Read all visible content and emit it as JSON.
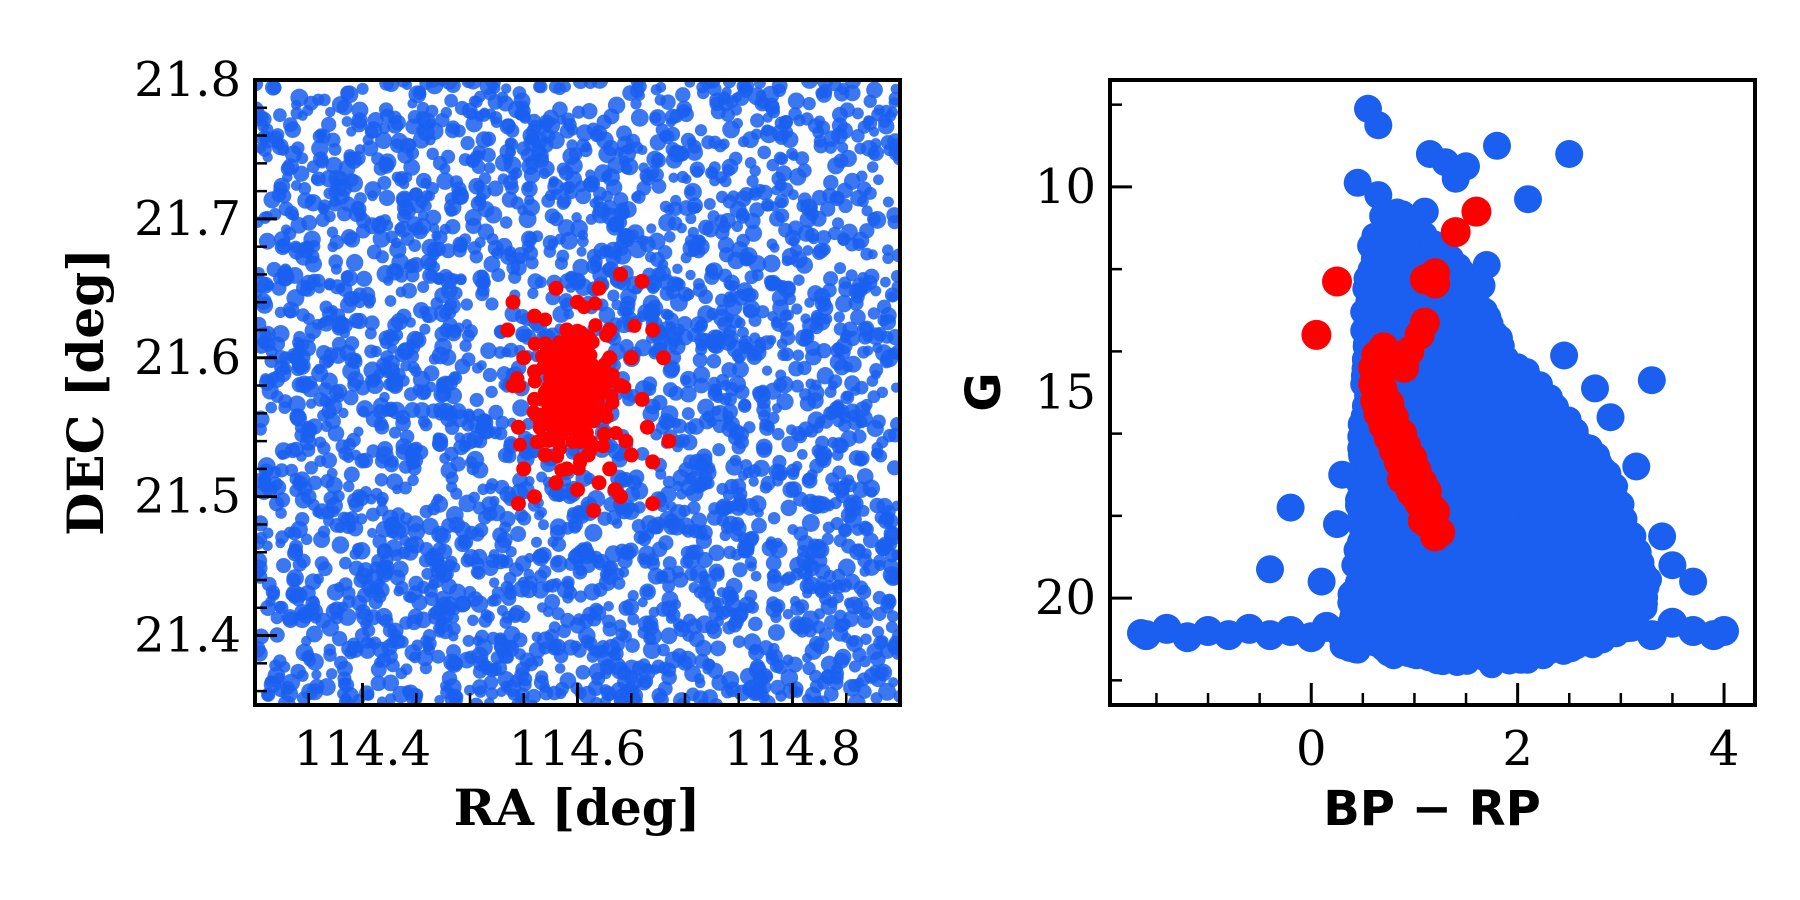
{
  "colors": {
    "field": "#1a5ff0",
    "cluster": "#ff0000",
    "axes": "#000000"
  },
  "chart_data": [
    {
      "type": "scatter",
      "xlabel": "RA [deg]",
      "ylabel": "DEC [deg]",
      "xlim": [
        114.3,
        114.9
      ],
      "ylim": [
        21.35,
        21.8
      ],
      "xticks": [
        114.4,
        114.6,
        114.8
      ],
      "xtick_labels": [
        "114.4",
        "114.6",
        "114.8"
      ],
      "yticks": [
        21.4,
        21.5,
        21.6,
        21.7,
        21.8
      ],
      "ytick_labels": [
        "21.4",
        "21.5",
        "21.6",
        "21.7",
        "21.8"
      ],
      "grid": false,
      "series": [
        {
          "role": "field",
          "color": "#1a5ff0",
          "distribution": "uniform",
          "count": 3000,
          "x_range": [
            114.3,
            114.9
          ],
          "y_range": [
            21.35,
            21.8
          ]
        },
        {
          "role": "cluster",
          "color": "#ff0000",
          "distribution": "concentrated",
          "center": [
            114.595,
            21.575
          ],
          "points": [
            [
              114.54,
              21.64
            ],
            [
              114.56,
              21.63
            ],
            [
              114.58,
              21.65
            ],
            [
              114.6,
              21.64
            ],
            [
              114.62,
              21.65
            ],
            [
              114.64,
              21.66
            ],
            [
              114.66,
              21.655
            ],
            [
              114.535,
              21.62
            ],
            [
              114.55,
              21.6
            ],
            [
              114.57,
              21.61
            ],
            [
              114.59,
              21.62
            ],
            [
              114.61,
              21.615
            ],
            [
              114.63,
              21.62
            ],
            [
              114.65,
              21.6
            ],
            [
              114.67,
              21.62
            ],
            [
              114.68,
              21.6
            ],
            [
              114.54,
              21.58
            ],
            [
              114.56,
              21.57
            ],
            [
              114.58,
              21.59
            ],
            [
              114.6,
              21.58
            ],
            [
              114.62,
              21.59
            ],
            [
              114.64,
              21.58
            ],
            [
              114.66,
              21.57
            ],
            [
              114.545,
              21.55
            ],
            [
              114.565,
              21.54
            ],
            [
              114.585,
              21.56
            ],
            [
              114.605,
              21.55
            ],
            [
              114.625,
              21.56
            ],
            [
              114.645,
              21.54
            ],
            [
              114.665,
              21.55
            ],
            [
              114.685,
              21.54
            ],
            [
              114.55,
              21.52
            ],
            [
              114.57,
              21.53
            ],
            [
              114.59,
              21.52
            ],
            [
              114.61,
              21.53
            ],
            [
              114.63,
              21.52
            ],
            [
              114.65,
              21.53
            ],
            [
              114.67,
              21.525
            ],
            [
              114.56,
              21.5
            ],
            [
              114.58,
              21.51
            ],
            [
              114.6,
              21.505
            ],
            [
              114.62,
              21.51
            ],
            [
              114.64,
              21.5
            ],
            [
              114.545,
              21.495
            ],
            [
              114.615,
              21.49
            ],
            [
              114.635,
              21.505
            ],
            [
              114.67,
              21.495
            ],
            [
              114.59,
              21.6
            ],
            [
              114.595,
              21.57
            ],
            [
              114.6,
              21.59
            ],
            [
              114.585,
              21.58
            ],
            [
              114.605,
              21.575
            ],
            [
              114.59,
              21.555
            ],
            [
              114.61,
              21.565
            ],
            [
              114.58,
              21.565
            ],
            [
              114.6,
              21.56
            ],
            [
              114.595,
              21.585
            ],
            [
              114.575,
              21.585
            ],
            [
              114.615,
              21.585
            ],
            [
              114.605,
              21.595
            ],
            [
              114.585,
              21.545
            ],
            [
              114.62,
              21.575
            ],
            [
              114.57,
              21.575
            ],
            [
              114.6,
              21.545
            ],
            [
              114.59,
              21.61
            ],
            [
              114.63,
              21.6
            ],
            [
              114.56,
              21.59
            ],
            [
              114.575,
              21.6
            ],
            [
              114.625,
              21.545
            ]
          ]
        }
      ]
    },
    {
      "type": "scatter",
      "xlabel": "BP − RP",
      "ylabel": "G",
      "xlim": [
        -1.95,
        4.3
      ],
      "ylim": [
        22.6,
        7.4
      ],
      "y_inverted": true,
      "xticks": [
        0,
        2,
        4
      ],
      "xtick_labels": [
        "0",
        "2",
        "4"
      ],
      "yticks": [
        10,
        15,
        20
      ],
      "ytick_labels": [
        "10",
        "15",
        "20"
      ],
      "grid": false,
      "series": [
        {
          "role": "field",
          "color": "#1a5ff0",
          "distribution": "dense-envelope",
          "envelope": [
            [
              0.6,
              11.0
            ],
            [
              0.75,
              10.4
            ],
            [
              1.0,
              10.8
            ],
            [
              1.15,
              11.2
            ],
            [
              1.4,
              11.8
            ],
            [
              1.6,
              12.6
            ],
            [
              1.9,
              14.0
            ],
            [
              2.3,
              15.0
            ],
            [
              2.6,
              15.9
            ],
            [
              2.9,
              17.0
            ],
            [
              3.2,
              18.5
            ],
            [
              3.3,
              19.6
            ],
            [
              3.2,
              20.6
            ],
            [
              2.6,
              21.3
            ],
            [
              1.9,
              21.7
            ],
            [
              1.3,
              21.6
            ],
            [
              0.6,
              21.4
            ],
            [
              0.3,
              21.2
            ],
            [
              0.35,
              20.2
            ],
            [
              0.45,
              18.5
            ],
            [
              0.45,
              16.5
            ],
            [
              0.5,
              14.5
            ],
            [
              0.5,
              12.6
            ],
            [
              0.55,
              11.6
            ]
          ],
          "tail": [
            [
              -1.6,
              20.9
            ],
            [
              -1.4,
              20.75
            ],
            [
              -1.2,
              20.95
            ],
            [
              -1.0,
              20.8
            ],
            [
              -0.8,
              20.9
            ],
            [
              -0.6,
              20.75
            ],
            [
              -0.4,
              20.9
            ],
            [
              -0.2,
              20.8
            ],
            [
              0.0,
              20.95
            ],
            [
              0.15,
              20.7
            ],
            [
              0.3,
              20.9
            ],
            [
              3.1,
              20.7
            ],
            [
              3.3,
              20.9
            ],
            [
              3.5,
              20.6
            ],
            [
              3.7,
              20.8
            ],
            [
              3.9,
              20.9
            ],
            [
              4.0,
              20.8
            ]
          ],
          "points": [
            [
              0.55,
              8.1
            ],
            [
              0.65,
              8.5
            ],
            [
              1.15,
              9.2
            ],
            [
              1.3,
              9.4
            ],
            [
              1.5,
              9.5
            ],
            [
              1.8,
              9.0
            ],
            [
              2.5,
              9.2
            ],
            [
              0.45,
              9.9
            ],
            [
              1.4,
              9.8
            ],
            [
              2.1,
              10.3
            ],
            [
              0.65,
              10.2
            ],
            [
              1.1,
              10.6
            ],
            [
              1.7,
              11.9
            ],
            [
              1.65,
              12.4
            ],
            [
              1.9,
              14.5
            ],
            [
              2.2,
              15.0
            ],
            [
              2.45,
              14.1
            ],
            [
              2.75,
              14.9
            ],
            [
              3.3,
              14.7
            ],
            [
              2.9,
              15.6
            ],
            [
              -0.2,
              17.8
            ],
            [
              -0.4,
              19.3
            ],
            [
              0.1,
              19.6
            ],
            [
              3.15,
              16.8
            ],
            [
              3.5,
              19.2
            ],
            [
              3.7,
              19.6
            ],
            [
              3.4,
              18.5
            ],
            [
              0.3,
              17.0
            ],
            [
              0.25,
              18.2
            ],
            [
              -1.65,
              20.85
            ]
          ]
        },
        {
          "role": "cluster",
          "color": "#ff0000",
          "distribution": "sequence",
          "points": [
            [
              0.05,
              13.6
            ],
            [
              0.25,
              12.3
            ],
            [
              1.6,
              10.6
            ],
            [
              1.4,
              11.1
            ],
            [
              1.2,
              12.1
            ],
            [
              1.1,
              12.25
            ],
            [
              1.2,
              12.35
            ],
            [
              1.1,
              13.3
            ],
            [
              1.05,
              13.6
            ],
            [
              0.95,
              14.0
            ],
            [
              0.9,
              14.4
            ],
            [
              0.7,
              13.9
            ],
            [
              0.65,
              14.1
            ],
            [
              0.6,
              14.4
            ],
            [
              0.6,
              14.8
            ],
            [
              0.62,
              15.2
            ],
            [
              0.65,
              15.5
            ],
            [
              0.7,
              15.8
            ],
            [
              0.75,
              16.1
            ],
            [
              0.8,
              16.4
            ],
            [
              0.85,
              16.7
            ],
            [
              0.9,
              17.0
            ],
            [
              0.95,
              17.3
            ],
            [
              1.0,
              17.5
            ],
            [
              1.05,
              17.7
            ],
            [
              1.1,
              17.9
            ],
            [
              1.15,
              18.1
            ],
            [
              1.2,
              18.3
            ],
            [
              1.2,
              18.5
            ],
            [
              0.68,
              15.0
            ],
            [
              0.72,
              15.3
            ],
            [
              0.8,
              15.6
            ],
            [
              0.88,
              16.0
            ],
            [
              0.92,
              16.3
            ],
            [
              0.98,
              16.6
            ],
            [
              1.02,
              16.9
            ],
            [
              1.08,
              17.2
            ],
            [
              1.12,
              17.4
            ],
            [
              1.2,
              17.9
            ],
            [
              1.25,
              18.4
            ]
          ]
        }
      ]
    }
  ]
}
